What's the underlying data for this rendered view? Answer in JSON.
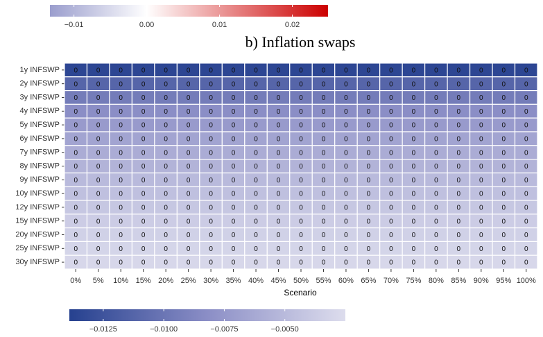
{
  "chart_data": [
    {
      "type": "colorbar",
      "lim": [
        -0.0133,
        0.0249
      ],
      "midpoint": 0,
      "colors": [
        "#9a9dcd",
        "#ffffff",
        "#cc0000"
      ],
      "ticks": [
        {
          "value": -0.01,
          "label": "−0.01"
        },
        {
          "value": 0,
          "label": "0.00"
        },
        0.01,
        0.02
      ]
    },
    {
      "type": "heatmap",
      "title": "b) Inflation swaps",
      "xlabel": "Scenario",
      "rows": [
        "1y INFSWP",
        "2y INFSWP",
        "3y INFSWP",
        "4y INFSWP",
        "5y INFSWP",
        "6y INFSWP",
        "7y INFSWP",
        "8y INFSWP",
        "9y INFSWP",
        "10y INFSWP",
        "12y INFSWP",
        "15y INFSWP",
        "20y INFSWP",
        "25y INFSWP",
        "30y INFSWP"
      ],
      "columns": [
        "0%",
        "5%",
        "10%",
        "15%",
        "20%",
        "25%",
        "30%",
        "35%",
        "40%",
        "45%",
        "50%",
        "55%",
        "60%",
        "65%",
        "70%",
        "75%",
        "80%",
        "85%",
        "90%",
        "95%",
        "100%"
      ],
      "values": [
        [
          -0.0135,
          -0.0135,
          -0.0135,
          -0.0135,
          -0.0135,
          -0.0135,
          -0.0135,
          -0.0135,
          -0.0135,
          -0.0135,
          -0.0135,
          -0.0135,
          -0.0135,
          -0.0135,
          -0.0135,
          -0.0135,
          -0.0135,
          -0.0135,
          -0.0135,
          -0.0135,
          -0.0135
        ],
        [
          -0.0112,
          -0.0112,
          -0.0112,
          -0.0112,
          -0.0112,
          -0.0112,
          -0.0112,
          -0.0112,
          -0.0112,
          -0.0112,
          -0.0112,
          -0.0112,
          -0.0112,
          -0.0112,
          -0.0112,
          -0.0112,
          -0.0112,
          -0.0112,
          -0.0112,
          -0.0112,
          -0.0112
        ],
        [
          -0.0095,
          -0.0095,
          -0.0095,
          -0.0095,
          -0.0095,
          -0.0095,
          -0.0095,
          -0.0095,
          -0.0095,
          -0.0095,
          -0.0095,
          -0.0095,
          -0.0095,
          -0.0095,
          -0.0095,
          -0.0095,
          -0.0095,
          -0.0095,
          -0.0095,
          -0.0095,
          -0.0095
        ],
        [
          -0.0082,
          -0.0082,
          -0.0082,
          -0.0082,
          -0.0082,
          -0.0082,
          -0.0082,
          -0.0082,
          -0.0082,
          -0.0082,
          -0.0082,
          -0.0082,
          -0.0082,
          -0.0082,
          -0.0082,
          -0.0082,
          -0.0082,
          -0.0082,
          -0.0082,
          -0.0082,
          -0.0082
        ],
        [
          -0.0073,
          -0.0073,
          -0.0073,
          -0.0073,
          -0.0073,
          -0.0073,
          -0.0073,
          -0.0073,
          -0.0073,
          -0.0073,
          -0.0073,
          -0.0073,
          -0.0073,
          -0.0073,
          -0.0073,
          -0.0073,
          -0.0073,
          -0.0073,
          -0.0073,
          -0.0073,
          -0.0073
        ],
        [
          -0.0066,
          -0.0066,
          -0.0066,
          -0.0066,
          -0.0066,
          -0.0066,
          -0.0066,
          -0.0066,
          -0.0066,
          -0.0066,
          -0.0066,
          -0.0066,
          -0.0066,
          -0.0066,
          -0.0066,
          -0.0066,
          -0.0066,
          -0.0066,
          -0.0066,
          -0.0066,
          -0.0066
        ],
        [
          -0.006,
          -0.006,
          -0.006,
          -0.006,
          -0.006,
          -0.006,
          -0.006,
          -0.006,
          -0.006,
          -0.006,
          -0.006,
          -0.006,
          -0.006,
          -0.006,
          -0.006,
          -0.006,
          -0.006,
          -0.006,
          -0.006,
          -0.006,
          -0.006
        ],
        [
          -0.0055,
          -0.0055,
          -0.0055,
          -0.0055,
          -0.0055,
          -0.0055,
          -0.0055,
          -0.0055,
          -0.0055,
          -0.0055,
          -0.0055,
          -0.0055,
          -0.0055,
          -0.0055,
          -0.0055,
          -0.0055,
          -0.0055,
          -0.0055,
          -0.0055,
          -0.0055,
          -0.0055
        ],
        [
          -0.005,
          -0.005,
          -0.005,
          -0.005,
          -0.005,
          -0.005,
          -0.005,
          -0.005,
          -0.005,
          -0.005,
          -0.005,
          -0.005,
          -0.005,
          -0.005,
          -0.005,
          -0.005,
          -0.005,
          -0.005,
          -0.005,
          -0.005,
          -0.005
        ],
        [
          -0.0046,
          -0.0046,
          -0.0046,
          -0.0046,
          -0.0046,
          -0.0046,
          -0.0046,
          -0.0046,
          -0.0046,
          -0.0046,
          -0.0046,
          -0.0046,
          -0.0046,
          -0.0046,
          -0.0046,
          -0.0046,
          -0.0046,
          -0.0046,
          -0.0046,
          -0.0046,
          -0.0046
        ],
        [
          -0.0041,
          -0.0041,
          -0.0041,
          -0.0041,
          -0.0041,
          -0.0041,
          -0.0041,
          -0.0041,
          -0.0041,
          -0.0041,
          -0.0041,
          -0.0041,
          -0.0041,
          -0.0041,
          -0.0041,
          -0.0041,
          -0.0041,
          -0.0041,
          -0.0041,
          -0.0041,
          -0.0041
        ],
        [
          -0.0037,
          -0.0037,
          -0.0037,
          -0.0037,
          -0.0037,
          -0.0037,
          -0.0037,
          -0.0037,
          -0.0037,
          -0.0037,
          -0.0037,
          -0.0037,
          -0.0037,
          -0.0037,
          -0.0037,
          -0.0037,
          -0.0037,
          -0.0037,
          -0.0037,
          -0.0037,
          -0.0037
        ],
        [
          -0.0034,
          -0.0034,
          -0.0034,
          -0.0034,
          -0.0034,
          -0.0034,
          -0.0034,
          -0.0034,
          -0.0034,
          -0.0034,
          -0.0034,
          -0.0034,
          -0.0034,
          -0.0034,
          -0.0034,
          -0.0034,
          -0.0034,
          -0.0034,
          -0.0034,
          -0.0034,
          -0.0034
        ],
        [
          -0.0031,
          -0.0031,
          -0.0031,
          -0.0031,
          -0.0031,
          -0.0031,
          -0.0031,
          -0.0031,
          -0.0031,
          -0.0031,
          -0.0031,
          -0.0031,
          -0.0031,
          -0.0031,
          -0.0031,
          -0.0031,
          -0.0031,
          -0.0031,
          -0.0031,
          -0.0031,
          -0.0031
        ],
        [
          -0.0029,
          -0.0029,
          -0.0029,
          -0.0029,
          -0.0029,
          -0.0029,
          -0.0029,
          -0.0029,
          -0.0029,
          -0.0029,
          -0.0029,
          -0.0029,
          -0.0029,
          -0.0029,
          -0.0029,
          -0.0029,
          -0.0029,
          -0.0029,
          -0.0029,
          -0.0029,
          -0.0029
        ]
      ],
      "value_labels": [
        [
          "0",
          "0",
          "0",
          "0",
          "0",
          "0",
          "0",
          "0",
          "0",
          "0",
          "0",
          "0",
          "0",
          "0",
          "0",
          "0",
          "0",
          "0",
          "0",
          "0",
          "0"
        ],
        [
          "0",
          "0",
          "0",
          "0",
          "0",
          "0",
          "0",
          "0",
          "0",
          "0",
          "0",
          "0",
          "0",
          "0",
          "0",
          "0",
          "0",
          "0",
          "0",
          "0",
          "0"
        ],
        [
          "0",
          "0",
          "0",
          "0",
          "0",
          "0",
          "0",
          "0",
          "0",
          "0",
          "0",
          "0",
          "0",
          "0",
          "0",
          "0",
          "0",
          "0",
          "0",
          "0",
          "0"
        ],
        [
          "0",
          "0",
          "0",
          "0",
          "0",
          "0",
          "0",
          "0",
          "0",
          "0",
          "0",
          "0",
          "0",
          "0",
          "0",
          "0",
          "0",
          "0",
          "0",
          "0",
          "0"
        ],
        [
          "0",
          "0",
          "0",
          "0",
          "0",
          "0",
          "0",
          "0",
          "0",
          "0",
          "0",
          "0",
          "0",
          "0",
          "0",
          "0",
          "0",
          "0",
          "0",
          "0",
          "0"
        ],
        [
          "0",
          "0",
          "0",
          "0",
          "0",
          "0",
          "0",
          "0",
          "0",
          "0",
          "0",
          "0",
          "0",
          "0",
          "0",
          "0",
          "0",
          "0",
          "0",
          "0",
          "0"
        ],
        [
          "0",
          "0",
          "0",
          "0",
          "0",
          "0",
          "0",
          "0",
          "0",
          "0",
          "0",
          "0",
          "0",
          "0",
          "0",
          "0",
          "0",
          "0",
          "0",
          "0",
          "0"
        ],
        [
          "0",
          "0",
          "0",
          "0",
          "0",
          "0",
          "0",
          "0",
          "0",
          "0",
          "0",
          "0",
          "0",
          "0",
          "0",
          "0",
          "0",
          "0",
          "0",
          "0",
          "0"
        ],
        [
          "0",
          "0",
          "0",
          "0",
          "0",
          "0",
          "0",
          "0",
          "0",
          "0",
          "0",
          "0",
          "0",
          "0",
          "0",
          "0",
          "0",
          "0",
          "0",
          "0",
          "0"
        ],
        [
          "0",
          "0",
          "0",
          "0",
          "0",
          "0",
          "0",
          "0",
          "0",
          "0",
          "0",
          "0",
          "0",
          "0",
          "0",
          "0",
          "0",
          "0",
          "0",
          "0",
          "0"
        ],
        [
          "0",
          "0",
          "0",
          "0",
          "0",
          "0",
          "0",
          "0",
          "0",
          "0",
          "0",
          "0",
          "0",
          "0",
          "0",
          "0",
          "0",
          "0",
          "0",
          "0",
          "0"
        ],
        [
          "0",
          "0",
          "0",
          "0",
          "0",
          "0",
          "0",
          "0",
          "0",
          "0",
          "0",
          "0",
          "0",
          "0",
          "0",
          "0",
          "0",
          "0",
          "0",
          "0",
          "0"
        ],
        [
          "0",
          "0",
          "0",
          "0",
          "0",
          "0",
          "0",
          "0",
          "0",
          "0",
          "0",
          "0",
          "0",
          "0",
          "0",
          "0",
          "0",
          "0",
          "0",
          "0",
          "0"
        ],
        [
          "0",
          "0",
          "0",
          "0",
          "0",
          "0",
          "0",
          "0",
          "0",
          "0",
          "0",
          "0",
          "0",
          "0",
          "0",
          "0",
          "0",
          "0",
          "0",
          "0",
          "0"
        ],
        [
          "0",
          "0",
          "0",
          "0",
          "0",
          "0",
          "0",
          "0",
          "0",
          "0",
          "0",
          "0",
          "0",
          "0",
          "0",
          "0",
          "0",
          "0",
          "0",
          "0",
          "0"
        ]
      ]
    },
    {
      "type": "colorbar",
      "lim": [
        -0.0139,
        -0.0025
      ],
      "colors": [
        "#26418f",
        "#8b8ec6",
        "#dddded"
      ],
      "ticks": [
        {
          "value": -0.0125,
          "label": "−0.0125"
        },
        {
          "value": -0.01,
          "label": "−0.0100"
        },
        {
          "value": -0.0075,
          "label": "−0.0075"
        },
        {
          "value": -0.005,
          "label": "−0.0050"
        }
      ]
    }
  ]
}
